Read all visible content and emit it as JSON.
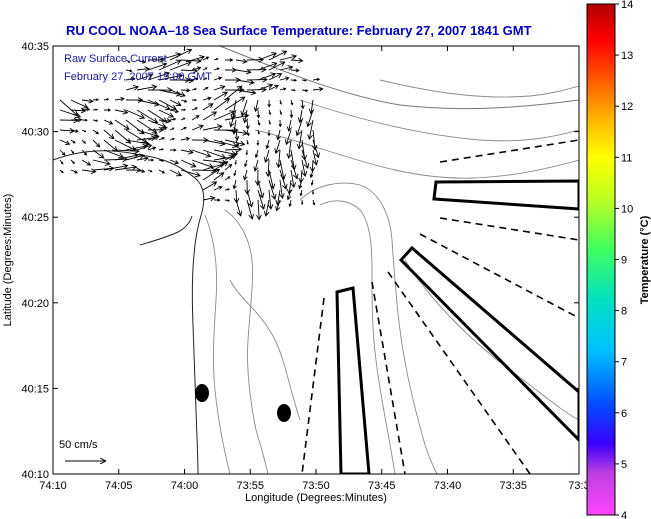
{
  "title": "RU COOL  NOAA–18  Sea Surface Temperature:  February 27, 2007 1841 GMT",
  "map": {
    "xlabel": "Longitude (Degrees:Minutes)",
    "ylabel": "Latitude (Degrees:Minutes)",
    "x_ticks": [
      "74:10",
      "74:05",
      "74:00",
      "73:55",
      "73:50",
      "73:45",
      "73:40",
      "73:35",
      "73:3"
    ],
    "y_ticks": [
      "40:35",
      "40:30",
      "40:25",
      "40:20",
      "40:15",
      "40:10"
    ],
    "legend_title": "Raw Surface Current",
    "legend_time": "February 27, 2007 19:00 GMT",
    "scale_label": "50 cm/s"
  },
  "colorbar": {
    "label": "Temperature (°C)",
    "ticks": [
      "14",
      "13",
      "12",
      "11",
      "10",
      "9",
      "8",
      "7",
      "6",
      "5",
      "4"
    ],
    "min": 4,
    "max": 14,
    "colors": [
      "#ff44ff",
      "#c040e0",
      "#3a00ff",
      "#0050ff",
      "#00c0ff",
      "#00e0c0",
      "#40ff60",
      "#c0ff20",
      "#ffff00",
      "#ffb000",
      "#ff5000",
      "#ff0000",
      "#b00000"
    ]
  },
  "chart_data": {
    "type": "map",
    "title": "RU COOL  NOAA–18  Sea Surface Temperature:  February 27, 2007 1841 GMT",
    "xlabel": "Longitude (Degrees:Minutes)",
    "ylabel": "Latitude (Degrees:Minutes)",
    "x_ticks": [
      "74:10",
      "74:05",
      "74:00",
      "73:55",
      "73:50",
      "73:45",
      "73:40",
      "73:35",
      "73:3"
    ],
    "y_ticks": [
      "40:35",
      "40:30",
      "40:25",
      "40:20",
      "40:15",
      "40:10"
    ],
    "colorbar_range": [
      4,
      14
    ],
    "colorbar_label": "Temperature (°C)"
  }
}
